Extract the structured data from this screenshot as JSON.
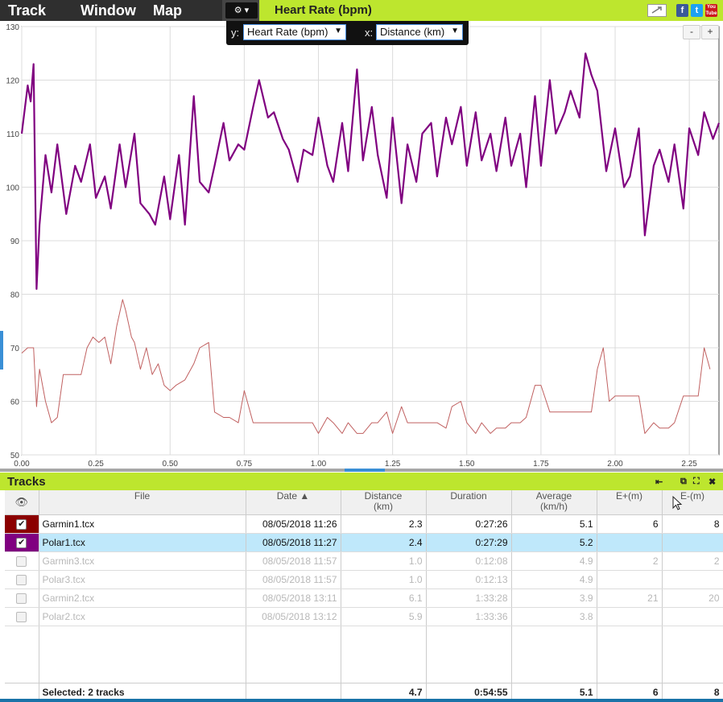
{
  "menu": {
    "items": [
      "Track",
      "Window",
      "Map"
    ]
  },
  "settings": {
    "gear_label": "⚙ ▾"
  },
  "title_bar": {
    "title": "Heart Rate (bpm)"
  },
  "social": {
    "facebook": "f",
    "twitter": "t",
    "youtube": "You Tube"
  },
  "axis_popup": {
    "y_label": "y:",
    "y_value": "Heart Rate (bpm)",
    "x_label": "x:",
    "x_value": "Distance (km)",
    "arrow": "▼"
  },
  "zoom": {
    "out": "-",
    "in": "+"
  },
  "colors": {
    "accent": "#bde62e",
    "series1": "#800080",
    "series2": "#c06060",
    "selected_row": "#bfe8fb"
  },
  "chart_data": {
    "type": "line",
    "xlim": [
      0,
      2.35
    ],
    "ylim": [
      50,
      130
    ],
    "x_ticks": [
      "0.00",
      "0.25",
      "0.50",
      "0.75",
      "1.00",
      "1.25",
      "1.50",
      "1.75",
      "2.00",
      "2.25"
    ],
    "y_ticks": [
      "50",
      "60",
      "70",
      "80",
      "90",
      "100",
      "110",
      "120",
      "130"
    ],
    "grid": true,
    "series": [
      {
        "color": "#800080",
        "x": [
          0.0,
          0.02,
          0.03,
          0.04,
          0.05,
          0.06,
          0.08,
          0.1,
          0.12,
          0.15,
          0.18,
          0.2,
          0.23,
          0.25,
          0.28,
          0.3,
          0.33,
          0.35,
          0.38,
          0.4,
          0.43,
          0.45,
          0.48,
          0.5,
          0.53,
          0.55,
          0.58,
          0.6,
          0.63,
          0.65,
          0.68,
          0.7,
          0.73,
          0.75,
          0.78,
          0.8,
          0.83,
          0.85,
          0.88,
          0.9,
          0.93,
          0.95,
          0.98,
          1.0,
          1.03,
          1.05,
          1.08,
          1.1,
          1.13,
          1.15,
          1.18,
          1.2,
          1.23,
          1.25,
          1.28,
          1.3,
          1.33,
          1.35,
          1.38,
          1.4,
          1.43,
          1.45,
          1.48,
          1.5,
          1.53,
          1.55,
          1.58,
          1.6,
          1.63,
          1.65,
          1.68,
          1.7,
          1.73,
          1.75,
          1.78,
          1.8,
          1.83,
          1.85,
          1.88,
          1.9,
          1.92,
          1.94,
          1.97,
          2.0,
          2.03,
          2.05,
          2.08,
          2.1,
          2.13,
          2.15,
          2.18,
          2.2,
          2.23,
          2.25,
          2.28,
          2.3,
          2.33,
          2.35
        ],
        "values": [
          110,
          119,
          116,
          123,
          81,
          93,
          106,
          99,
          108,
          95,
          104,
          101,
          108,
          98,
          102,
          96,
          108,
          100,
          110,
          97,
          95,
          93,
          102,
          94,
          106,
          93,
          117,
          101,
          99,
          104,
          112,
          105,
          108,
          107,
          115,
          120,
          113,
          114,
          109,
          107,
          101,
          107,
          106,
          113,
          104,
          101,
          112,
          103,
          122,
          105,
          115,
          106,
          98,
          113,
          97,
          108,
          101,
          110,
          112,
          102,
          113,
          108,
          115,
          104,
          114,
          105,
          110,
          103,
          113,
          104,
          110,
          100,
          117,
          104,
          120,
          110,
          114,
          118,
          113,
          125,
          121,
          118,
          103,
          111,
          100,
          102,
          111,
          91,
          104,
          107,
          101,
          108,
          96,
          111,
          106,
          114,
          109,
          112
        ]
      },
      {
        "color": "#c06060",
        "x": [
          0.0,
          0.02,
          0.04,
          0.05,
          0.06,
          0.08,
          0.1,
          0.12,
          0.14,
          0.16,
          0.18,
          0.2,
          0.22,
          0.24,
          0.26,
          0.28,
          0.3,
          0.32,
          0.34,
          0.35,
          0.37,
          0.38,
          0.4,
          0.42,
          0.44,
          0.46,
          0.48,
          0.5,
          0.52,
          0.55,
          0.58,
          0.6,
          0.63,
          0.65,
          0.68,
          0.7,
          0.73,
          0.75,
          0.78,
          0.8,
          0.83,
          0.85,
          0.88,
          0.9,
          0.93,
          0.95,
          0.98,
          1.0,
          1.03,
          1.05,
          1.08,
          1.1,
          1.13,
          1.15,
          1.18,
          1.2,
          1.23,
          1.25,
          1.28,
          1.3,
          1.33,
          1.35,
          1.38,
          1.4,
          1.43,
          1.45,
          1.48,
          1.5,
          1.53,
          1.55,
          1.58,
          1.6,
          1.63,
          1.65,
          1.68,
          1.7,
          1.73,
          1.75,
          1.78,
          1.8,
          1.83,
          1.85,
          1.88,
          1.9,
          1.92,
          1.94,
          1.96,
          1.98,
          2.0,
          2.03,
          2.05,
          2.08,
          2.1,
          2.13,
          2.15,
          2.18,
          2.2,
          2.23,
          2.25,
          2.28,
          2.3,
          2.32
        ],
        "values": [
          69,
          70,
          70,
          59,
          66,
          60,
          56,
          57,
          65,
          65,
          65,
          65,
          70,
          72,
          71,
          72,
          67,
          74,
          79,
          77,
          72,
          71,
          66,
          70,
          65,
          67,
          63,
          62,
          63,
          64,
          67,
          70,
          71,
          58,
          57,
          57,
          56,
          62,
          56,
          56,
          56,
          56,
          56,
          56,
          56,
          56,
          56,
          54,
          57,
          56,
          54,
          56,
          54,
          54,
          56,
          56,
          58,
          54,
          59,
          56,
          56,
          56,
          56,
          56,
          55,
          59,
          60,
          56,
          54,
          56,
          54,
          55,
          55,
          56,
          56,
          57,
          63,
          63,
          58,
          58,
          58,
          58,
          58,
          58,
          58,
          66,
          70,
          60,
          61,
          61,
          61,
          61,
          54,
          56,
          55,
          55,
          56,
          61,
          61,
          61,
          70,
          66
        ]
      }
    ]
  },
  "tracks": {
    "title": "Tracks",
    "icons": {
      "first": "⇤",
      "restore": "⧉",
      "maximize": "⛶",
      "close": "✖"
    },
    "columns": {
      "visible": "👁",
      "file": "File",
      "date": "Date ▲",
      "distance": "Distance",
      "distance_unit": "(km)",
      "duration": "Duration",
      "average": "Average",
      "average_unit": "(km/h)",
      "eplus": "E+(m)",
      "eminus": "E-(m)"
    },
    "rows": [
      {
        "file": "Garmin1.tcx",
        "date": "08/05/2018 11:26",
        "distance": "2.3",
        "duration": "0:27:26",
        "average": "5.1",
        "eplus": "6",
        "eminus": "8",
        "checked": "✔",
        "color": "#8b0000"
      },
      {
        "file": "Polar1.tcx",
        "date": "08/05/2018 11:27",
        "distance": "2.4",
        "duration": "0:27:29",
        "average": "5.2",
        "eplus": "",
        "eminus": "",
        "checked": "✔",
        "color": "#800080"
      },
      {
        "file": "Garmin3.tcx",
        "date": "08/05/2018 11:57",
        "distance": "1.0",
        "duration": "0:12:08",
        "average": "4.9",
        "eplus": "2",
        "eminus": "2",
        "checked": "",
        "color": ""
      },
      {
        "file": "Polar3.tcx",
        "date": "08/05/2018 11:57",
        "distance": "1.0",
        "duration": "0:12:13",
        "average": "4.9",
        "eplus": "",
        "eminus": "",
        "checked": "",
        "color": ""
      },
      {
        "file": "Garmin2.tcx",
        "date": "08/05/2018 13:11",
        "distance": "6.1",
        "duration": "1:33:28",
        "average": "3.9",
        "eplus": "21",
        "eminus": "20",
        "checked": "",
        "color": ""
      },
      {
        "file": "Polar2.tcx",
        "date": "08/05/2018 13:12",
        "distance": "5.9",
        "duration": "1:33:36",
        "average": "3.8",
        "eplus": "",
        "eminus": "",
        "checked": "",
        "color": ""
      }
    ],
    "total": {
      "label": "Selected: 2 tracks",
      "distance": "4.7",
      "duration": "0:54:55",
      "average": "5.1",
      "eplus": "6",
      "eminus": "8"
    }
  }
}
